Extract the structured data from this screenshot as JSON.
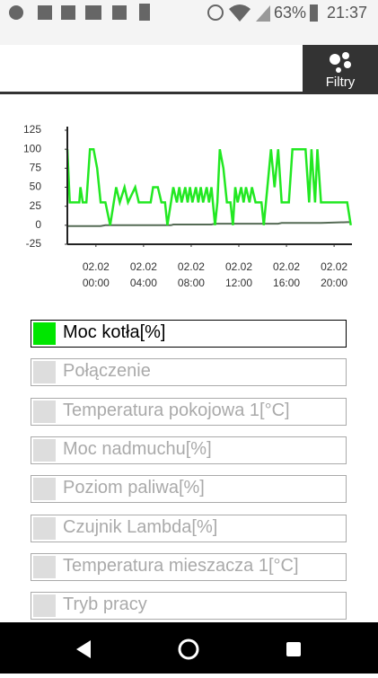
{
  "status_bar": {
    "battery": "63%",
    "time": "21:37"
  },
  "header": {
    "button": "Filtry"
  },
  "chart_data": {
    "type": "line",
    "x": [
      -2.4,
      -2.2,
      -1.4,
      -1.3,
      -1.1,
      -0.8,
      -0.5,
      -0.2,
      0.1,
      0.4,
      0.8,
      1.2,
      1.5,
      1.7,
      2.0,
      2.4,
      2.7,
      3.3,
      3.6,
      4.6,
      4.8,
      5.2,
      5.5,
      5.8,
      6.0,
      6.3,
      6.5,
      6.8,
      7.0,
      7.2,
      7.5,
      7.7,
      7.9,
      8.1,
      8.4,
      8.6,
      8.8,
      9.0,
      9.3,
      9.5,
      9.7,
      10.0,
      10.2,
      10.4,
      10.7,
      11.0,
      11.3,
      11.5,
      11.7,
      11.9,
      12.2,
      12.4,
      12.6,
      12.9,
      13.1,
      13.4,
      13.9,
      14.1,
      14.4,
      14.7,
      15.0,
      15.3,
      15.6,
      16.2,
      16.5,
      17.6,
      17.9,
      18.1,
      18.4,
      18.6,
      18.9,
      21.1,
      21.4
    ],
    "series": [
      {
        "name": "Moc kotła[%]",
        "color": "#22e822",
        "values": [
          100,
          30,
          30,
          50,
          30,
          30,
          100,
          100,
          75,
          30,
          30,
          0,
          30,
          50,
          30,
          50,
          30,
          50,
          30,
          30,
          50,
          50,
          30,
          30,
          0,
          30,
          50,
          30,
          50,
          30,
          50,
          30,
          50,
          30,
          50,
          30,
          50,
          30,
          50,
          30,
          50,
          0,
          30,
          100,
          75,
          30,
          30,
          0,
          50,
          30,
          50,
          30,
          50,
          30,
          50,
          30,
          30,
          0,
          50,
          100,
          50,
          100,
          30,
          30,
          100,
          100,
          30,
          100,
          30,
          100,
          30,
          30,
          0
        ]
      },
      {
        "color": "#556b55",
        "values": [
          -1,
          -1,
          -1,
          -1,
          -1,
          -1,
          -1,
          -1,
          -1,
          -1,
          0,
          0,
          0,
          0,
          0,
          0,
          0,
          0,
          0,
          0,
          0,
          0,
          0,
          0,
          0,
          0,
          1,
          1,
          1,
          1,
          1,
          1,
          1,
          1,
          1,
          1,
          1,
          1,
          1,
          1,
          1,
          2,
          2,
          2,
          2,
          2,
          2,
          2,
          2,
          2,
          2,
          2,
          2,
          2,
          2,
          2,
          2,
          2,
          2,
          2,
          2,
          2,
          3,
          3,
          3,
          3,
          3,
          3,
          3,
          3,
          3,
          4,
          4
        ]
      }
    ],
    "xlim": [
      -2.4,
      21.5
    ],
    "xticks": [
      {
        "value": 0,
        "label": "02.02 00:00"
      },
      {
        "value": 4,
        "label": "02.02 04:00"
      },
      {
        "value": 8,
        "label": "02.02 08:00"
      },
      {
        "value": 12,
        "label": "02.02 12:00"
      },
      {
        "value": 16,
        "label": "02.02 16:00"
      },
      {
        "value": 20,
        "label": "02.02 20:00"
      }
    ],
    "ylim": [
      -25,
      125
    ],
    "yticks": [
      -25,
      0,
      25,
      50,
      75,
      100,
      125
    ]
  },
  "filters": [
    {
      "label": "Moc kotła[%]",
      "active": true,
      "color": "#00e600"
    },
    {
      "label": "Połączenie",
      "active": false
    },
    {
      "label": "Temperatura pokojowa 1[°C]",
      "active": false
    },
    {
      "label": "Moc nadmuchu[%]",
      "active": false
    },
    {
      "label": "Poziom paliwa[%]",
      "active": false
    },
    {
      "label": "Czujnik Lambda[%]",
      "active": false
    },
    {
      "label": "Temperatura mieszacza 1[°C]",
      "active": false
    },
    {
      "label": "Tryb pracy",
      "active": false
    }
  ]
}
